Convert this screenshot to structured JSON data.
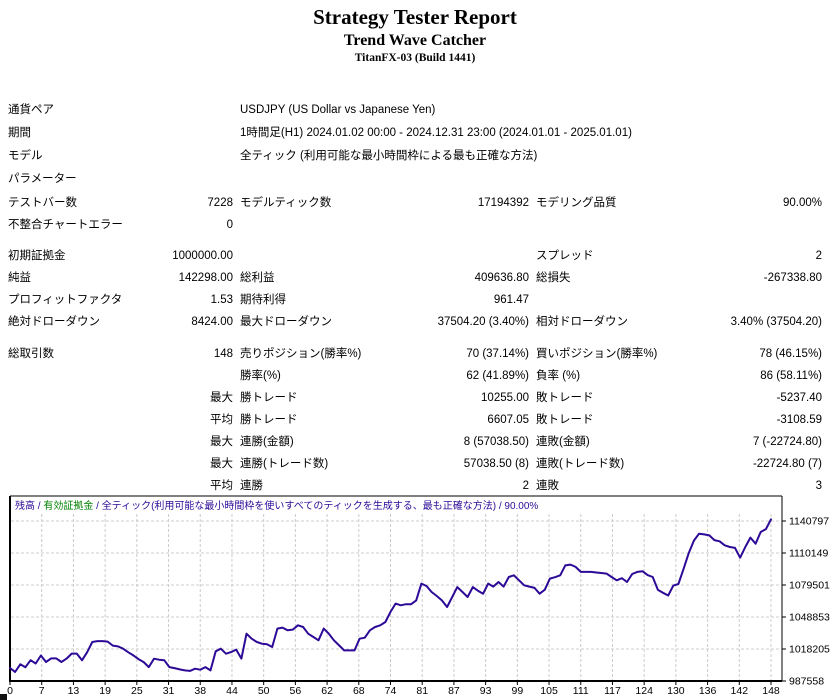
{
  "header": {
    "title": "Strategy Tester Report",
    "subtitle": "Trend Wave Catcher",
    "build": "TitanFX-03 (Build 1441)"
  },
  "info_rows": [
    {
      "label": "通貨ペア",
      "value": "USDJPY (US Dollar vs Japanese Yen)"
    },
    {
      "label": "期間",
      "value": "1時間足(H1) 2024.01.02 00:00 - 2024.12.31 23:00 (2024.01.01 - 2025.01.01)"
    },
    {
      "label": "モデル",
      "value": "全ティック (利用可能な最小時間枠による最も正確な方法)"
    },
    {
      "label": "パラメーター",
      "value": ""
    }
  ],
  "stat_groups": [
    {
      "rows": [
        [
          "テストバー数",
          "7228",
          "モデルティック数",
          "17194392",
          "モデリング品質",
          "90.00%"
        ],
        [
          "不整合チャートエラー",
          "0",
          "",
          "",
          "",
          ""
        ]
      ]
    },
    {
      "rows": [
        [
          "初期証拠金",
          "1000000.00",
          "",
          "",
          "スプレッド",
          "2"
        ],
        [
          "純益",
          "142298.00",
          "総利益",
          "409636.80",
          "総損失",
          "-267338.80"
        ],
        [
          "プロフィットファクタ",
          "1.53",
          "期待利得",
          "961.47",
          "",
          ""
        ],
        [
          "絶対ドローダウン",
          "8424.00",
          "最大ドローダウン",
          "37504.20 (3.40%)",
          "相対ドローダウン",
          "3.40% (37504.20)"
        ]
      ]
    },
    {
      "rows": [
        [
          "総取引数",
          "148",
          "売りポジション(勝率%)",
          "70 (37.14%)",
          "買いポジション(勝率%)",
          "78 (46.15%)"
        ],
        [
          "",
          "",
          "勝率(%)",
          "62 (41.89%)",
          "負率 (%)",
          "86 (58.11%)"
        ],
        [
          "",
          "最大",
          "勝トレード",
          "10255.00",
          "敗トレード",
          "-5237.40"
        ],
        [
          "",
          "平均",
          "勝トレード",
          "6607.05",
          "敗トレード",
          "-3108.59"
        ],
        [
          "",
          "最大",
          "連勝(金額)",
          "8 (57038.50)",
          "連敗(金額)",
          "7 (-22724.80)"
        ],
        [
          "",
          "最大",
          "連勝(トレード数)",
          "57038.50 (8)",
          "連敗(トレード数)",
          "-22724.80 (7)"
        ],
        [
          "",
          "平均",
          "連勝",
          "2",
          "連敗",
          "3"
        ]
      ]
    }
  ],
  "chart_data": {
    "type": "line",
    "title": "残高 / 有効証拠金 / 全ティック(利用可能な最小時間枠を使いすべてのティックを生成する、最も正確な方法) / 90.00%",
    "legend": {
      "balance_label": "残高",
      "equity_label": "有効証拠金",
      "model_label": "全ティック(利用可能な最小時間枠を使いすべてのティックを生成する、最も正確な方法)",
      "quality": "90.00%",
      "separator": " / "
    },
    "xlabel": "",
    "ylabel": "",
    "x_ticks": [
      0,
      7,
      13,
      19,
      25,
      31,
      38,
      44,
      50,
      56,
      62,
      68,
      74,
      81,
      87,
      93,
      99,
      105,
      111,
      117,
      124,
      130,
      136,
      142,
      148
    ],
    "y_ticks": [
      1140797,
      1110149,
      1079501,
      1048853,
      1018205,
      987558
    ],
    "ylim": [
      987558,
      1164700
    ],
    "xlim": [
      0,
      148
    ],
    "grid": true,
    "legend_position": "top-left",
    "colors": {
      "balance_line": "#2c0a97",
      "equity_green": "#008000",
      "grid": "#cccccc",
      "axis": "#000000"
    },
    "series": [
      {
        "name": "残高",
        "values": [
          1000000,
          996300,
          1003600,
          1000800,
          1007500,
          1004300,
          1012000,
          1005800,
          1009200,
          1009200,
          1005800,
          1009000,
          1013800,
          1013800,
          1007400,
          1015000,
          1024900,
          1025800,
          1025800,
          1025300,
          1021500,
          1020700,
          1018500,
          1015000,
          1012100,
          1008500,
          1005700,
          1000900,
          1008900,
          1008000,
          1007400,
          1000900,
          999900,
          998700,
          997700,
          997200,
          999300,
          998400,
          1000900,
          997700,
          1016000,
          1018500,
          1013700,
          1015200,
          1017600,
          1009000,
          1032900,
          1028100,
          1024900,
          1023300,
          1022800,
          1020100,
          1037700,
          1038700,
          1036100,
          1036800,
          1040900,
          1039300,
          1032900,
          1029700,
          1026500,
          1037700,
          1032900,
          1026500,
          1021700,
          1016900,
          1016900,
          1016900,
          1028100,
          1029000,
          1036100,
          1039300,
          1040900,
          1044100,
          1053700,
          1061700,
          1060100,
          1061100,
          1061100,
          1064800,
          1080800,
          1078500,
          1072800,
          1069000,
          1064800,
          1058400,
          1068000,
          1077500,
          1072800,
          1068000,
          1077500,
          1074000,
          1071200,
          1080800,
          1078000,
          1082400,
          1078000,
          1087200,
          1088800,
          1084000,
          1079200,
          1078000,
          1076700,
          1071200,
          1075000,
          1085600,
          1087000,
          1088800,
          1098300,
          1099000,
          1096800,
          1092000,
          1092000,
          1092000,
          1091500,
          1091000,
          1090400,
          1087200,
          1084000,
          1086000,
          1082400,
          1090000,
          1092000,
          1092700,
          1089000,
          1087200,
          1074800,
          1072000,
          1069400,
          1078900,
          1080500,
          1095000,
          1110000,
          1122000,
          1128600,
          1128000,
          1127000,
          1122500,
          1121400,
          1117500,
          1115900,
          1115000,
          1105600,
          1115900,
          1124900,
          1119100,
          1130300,
          1133000,
          1142298
        ]
      }
    ]
  }
}
